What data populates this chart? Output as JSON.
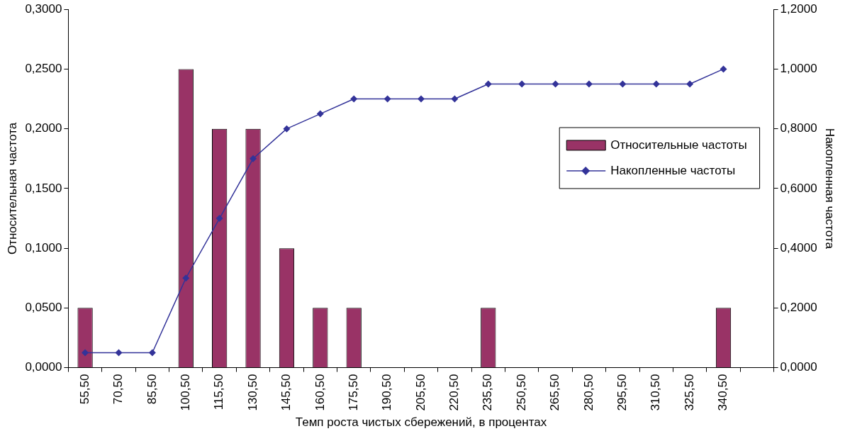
{
  "chart_data": {
    "type": "bar",
    "xlabel": "Темп роста чистых сбережений, в процентах",
    "ylabel": "Относительная частота",
    "y2label": "Накопленная частота",
    "categories": [
      "55,50",
      "70,50",
      "85,50",
      "100,50",
      "115,50",
      "130,50",
      "145,50",
      "160,50",
      "175,50",
      "190,50",
      "205,50",
      "220,50",
      "235,50",
      "250,50",
      "265,50",
      "280,50",
      "295,50",
      "310,50",
      "325,50",
      "340,50",
      null
    ],
    "series": [
      {
        "name": "Относительные частоты",
        "color": "#993366",
        "values": [
          0.05,
          0,
          0,
          0.25,
          0.2,
          0.2,
          0.1,
          0.05,
          0.05,
          0,
          0,
          0,
          0.05,
          0,
          0,
          0,
          0,
          0,
          0,
          0.05,
          null
        ]
      },
      {
        "name": "Накопленные частоты",
        "type": "line",
        "axis": "y2",
        "color": "#333399",
        "marker": "diamond",
        "line_style": "solid",
        "values": [
          0.05,
          0.05,
          0.05,
          0.3,
          0.5,
          0.7,
          0.8,
          0.85,
          0.9,
          0.9,
          0.9,
          0.9,
          0.95,
          0.95,
          0.95,
          0.95,
          0.95,
          0.95,
          0.95,
          1.0,
          null
        ]
      }
    ],
    "ylim": [
      0,
      0.3
    ],
    "yticks": [
      {
        "value": 0,
        "label": "0,0000"
      },
      {
        "value": 0.05,
        "label": "0,0500"
      },
      {
        "value": 0.1,
        "label": "0,1000"
      },
      {
        "value": 0.15,
        "label": "0,1500"
      },
      {
        "value": 0.2,
        "label": "0,2000"
      },
      {
        "value": 0.25,
        "label": "0,2500"
      },
      {
        "value": 0.3,
        "label": "0,3000"
      }
    ],
    "y2lim": [
      0,
      1.2
    ],
    "y2ticks": [
      {
        "value": 0,
        "label": "0,0000"
      },
      {
        "value": 0.2,
        "label": "0,2000"
      },
      {
        "value": 0.4,
        "label": "0,4000"
      },
      {
        "value": 0.6,
        "label": "0,6000"
      },
      {
        "value": 0.8,
        "label": "0,8000"
      },
      {
        "value": 1,
        "label": "1,0000"
      },
      {
        "value": 1.2,
        "label": "1,2000"
      }
    ],
    "grid": false,
    "legend": "right"
  }
}
